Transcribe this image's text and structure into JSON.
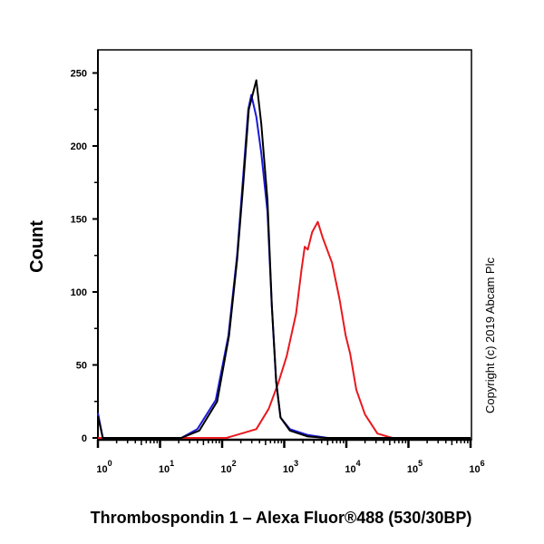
{
  "chart_data": {
    "type": "line",
    "title": "",
    "xlabel": "Thrombospondin 1 – Alexa Fluor®488 (530/30BP)",
    "ylabel": "Count",
    "xscale": "log",
    "xlim": [
      1,
      1000000
    ],
    "ylim": [
      0,
      270
    ],
    "yticks": [
      0,
      50,
      100,
      150,
      200,
      250
    ],
    "xticks": [
      {
        "value": 1,
        "base": "10",
        "exp": "0"
      },
      {
        "value": 10,
        "base": "10",
        "exp": "1"
      },
      {
        "value": 100,
        "base": "10",
        "exp": "2"
      },
      {
        "value": 1000,
        "base": "10",
        "exp": "3"
      },
      {
        "value": 10000,
        "base": "10",
        "exp": "4"
      },
      {
        "value": 100000,
        "base": "10",
        "exp": "5"
      },
      {
        "value": 1000000,
        "base": "10",
        "exp": "6"
      }
    ],
    "grid": false,
    "annotation": "Copyright (c) 2019 Abcam Plc",
    "series": [
      {
        "color": "#e8191e",
        "points": [
          [
            1,
            0
          ],
          [
            117,
            0
          ],
          [
            204,
            3
          ],
          [
            355,
            6
          ],
          [
            562,
            20
          ],
          [
            794,
            37
          ],
          [
            1096,
            56
          ],
          [
            1549,
            85
          ],
          [
            1905,
            116
          ],
          [
            2138,
            131
          ],
          [
            2399,
            129
          ],
          [
            2818,
            141
          ],
          [
            3467,
            148
          ],
          [
            4169,
            137
          ],
          [
            5888,
            120
          ],
          [
            7762,
            95
          ],
          [
            9772,
            70
          ],
          [
            11482,
            58
          ],
          [
            14454,
            33
          ],
          [
            19953,
            16
          ],
          [
            31623,
            3
          ],
          [
            54954,
            0
          ],
          [
            1000000,
            0
          ]
        ]
      },
      {
        "color": "#1a1ad6",
        "points": [
          [
            1,
            17
          ],
          [
            1.2,
            0
          ],
          [
            22,
            0
          ],
          [
            40,
            6
          ],
          [
            79,
            26
          ],
          [
            126,
            70
          ],
          [
            174,
            125
          ],
          [
            219,
            180
          ],
          [
            263,
            225
          ],
          [
            295,
            235
          ],
          [
            355,
            220
          ],
          [
            427,
            195
          ],
          [
            537,
            155
          ],
          [
            631,
            90
          ],
          [
            741,
            38
          ],
          [
            871,
            14
          ],
          [
            1230,
            6
          ],
          [
            2399,
            2
          ],
          [
            5012,
            0
          ],
          [
            1000000,
            0
          ]
        ]
      },
      {
        "color": "#000000",
        "points": [
          [
            1,
            15
          ],
          [
            1.2,
            0
          ],
          [
            22,
            0
          ],
          [
            43,
            5
          ],
          [
            83,
            25
          ],
          [
            129,
            70
          ],
          [
            174,
            122
          ],
          [
            219,
            174
          ],
          [
            269,
            225
          ],
          [
            355,
            245
          ],
          [
            427,
            215
          ],
          [
            537,
            163
          ],
          [
            631,
            91
          ],
          [
            741,
            39
          ],
          [
            871,
            14
          ],
          [
            1230,
            5
          ],
          [
            2399,
            1
          ],
          [
            4677,
            0
          ],
          [
            1000000,
            0
          ]
        ]
      }
    ]
  }
}
